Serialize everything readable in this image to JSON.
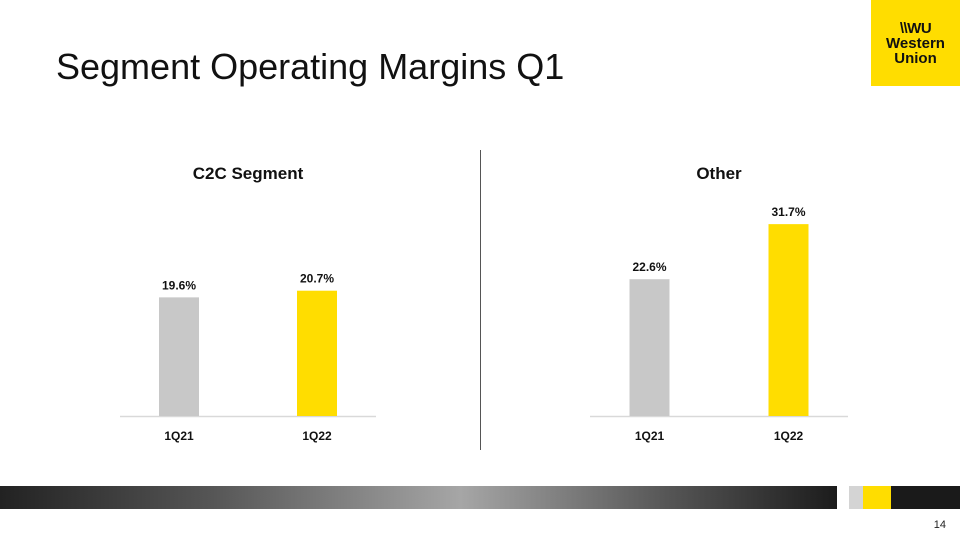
{
  "slide": {
    "title": "Segment Operating Margins Q1",
    "page_number": "14"
  },
  "logo": {
    "mark": "\\\\WU",
    "line1": "Western",
    "line2": "Union",
    "color": "#ffdd00"
  },
  "colors": {
    "prior_year_bar": "#c8c8c8",
    "current_year_bar": "#ffdd00",
    "axis": "#d9d9d9"
  },
  "chart_data": [
    {
      "type": "bar",
      "title": "C2C Segment",
      "categories": [
        "1Q21",
        "1Q22"
      ],
      "values": [
        19.6,
        20.7
      ],
      "data_labels": [
        "19.6%",
        "20.7%"
      ],
      "colors": [
        "#c8c8c8",
        "#ffdd00"
      ],
      "ylim": [
        0,
        38
      ],
      "grid": false,
      "legend": "none"
    },
    {
      "type": "bar",
      "title": "Other",
      "categories": [
        "1Q21",
        "1Q22"
      ],
      "values": [
        22.6,
        31.7
      ],
      "data_labels": [
        "22.6%",
        "31.7%"
      ],
      "colors": [
        "#c8c8c8",
        "#ffdd00"
      ],
      "ylim": [
        0,
        38
      ],
      "grid": false,
      "legend": "none"
    }
  ]
}
